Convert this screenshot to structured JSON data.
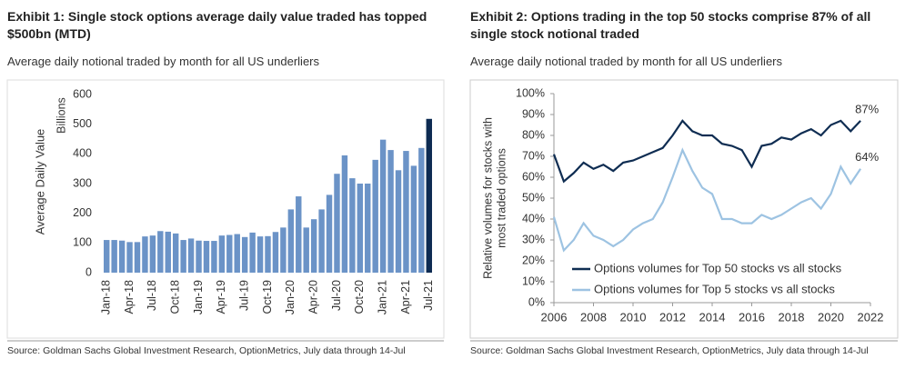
{
  "chart_data": [
    {
      "type": "bar",
      "title": "Exhibit 1: Single stock options average daily value traded has topped $500bn (MTD)",
      "subtitle": "Average daily notional traded by month for all US underliers",
      "ylabel": "Average Daily Value",
      "yunit": "Billions",
      "source": "Source: Goldman Sachs Global Investment Research, OptionMetrics, July data through 14-Jul",
      "categories": [
        "Jan-18",
        null,
        null,
        "Apr-18",
        null,
        null,
        "Jul-18",
        null,
        null,
        "Oct-18",
        null,
        null,
        "Jan-19",
        null,
        null,
        "Apr-19",
        null,
        null,
        "Jul-19",
        null,
        null,
        "Oct-19",
        null,
        null,
        "Jan-20",
        null,
        null,
        "Apr-20",
        null,
        null,
        "Jul-20",
        null,
        null,
        "Oct-20",
        null,
        null,
        "Jan-21",
        null,
        null,
        "Apr-21",
        null,
        null,
        "Jul-21"
      ],
      "values": [
        110,
        110,
        108,
        103,
        103,
        122,
        125,
        140,
        138,
        132,
        110,
        115,
        108,
        107,
        107,
        125,
        127,
        130,
        120,
        135,
        122,
        123,
        137,
        152,
        213,
        257,
        152,
        180,
        213,
        262,
        333,
        395,
        318,
        300,
        300,
        380,
        448,
        413,
        345,
        410,
        360,
        420,
        518
      ],
      "colors": [
        "#6b93c7",
        "#6b93c7",
        "#6b93c7",
        "#6b93c7",
        "#6b93c7",
        "#6b93c7",
        "#6b93c7",
        "#6b93c7",
        "#6b93c7",
        "#6b93c7",
        "#6b93c7",
        "#6b93c7",
        "#6b93c7",
        "#6b93c7",
        "#6b93c7",
        "#6b93c7",
        "#6b93c7",
        "#6b93c7",
        "#6b93c7",
        "#6b93c7",
        "#6b93c7",
        "#6b93c7",
        "#6b93c7",
        "#6b93c7",
        "#6b93c7",
        "#6b93c7",
        "#6b93c7",
        "#6b93c7",
        "#6b93c7",
        "#6b93c7",
        "#6b93c7",
        "#6b93c7",
        "#6b93c7",
        "#6b93c7",
        "#6b93c7",
        "#6b93c7",
        "#6b93c7",
        "#6b93c7",
        "#6b93c7",
        "#6b93c7",
        "#6b93c7",
        "#6b93c7",
        "#0d2b52"
      ],
      "ylim": [
        0,
        600
      ],
      "yticks": [
        0,
        100,
        200,
        300,
        400,
        500,
        600
      ]
    },
    {
      "type": "line",
      "title": "Exhibit 2: Options trading in the top 50 stocks comprise 87% of all single stock notional traded",
      "subtitle": "Average daily notional traded by month for all US underliers",
      "ylabel": [
        "Relative volumes for stocks with",
        "most traded options"
      ],
      "source": "Source: Goldman Sachs Global Investment Research, OptionMetrics, July data through 14-Jul",
      "x": [
        2006,
        2006.5,
        2007,
        2007.5,
        2008,
        2008.5,
        2009,
        2009.5,
        2010,
        2010.5,
        2011,
        2011.5,
        2012,
        2012.5,
        2013,
        2013.5,
        2014,
        2014.5,
        2015,
        2015.5,
        2016,
        2016.5,
        2017,
        2017.5,
        2018,
        2018.5,
        2019,
        2019.5,
        2020,
        2020.5,
        2021,
        2021.5
      ],
      "series": [
        {
          "name": "Options volumes for Top 50 stocks vs all stocks",
          "color": "#0f2d52",
          "values": [
            71,
            58,
            62,
            67,
            64,
            66,
            63,
            67,
            68,
            70,
            72,
            74,
            80,
            87,
            82,
            80,
            80,
            76,
            75,
            73,
            65,
            75,
            76,
            79,
            78,
            81,
            83,
            80,
            85,
            87,
            82,
            87
          ]
        },
        {
          "name": "Options volumes for Top 5 stocks vs all stocks",
          "color": "#9dc3e2",
          "values": [
            41,
            25,
            30,
            38,
            32,
            30,
            27,
            30,
            35,
            38,
            40,
            48,
            60,
            73,
            63,
            55,
            52,
            40,
            40,
            38,
            38,
            42,
            40,
            42,
            45,
            48,
            50,
            45,
            52,
            65,
            57,
            64
          ]
        }
      ],
      "annotations": [
        "87%",
        "64%"
      ],
      "legend": "lower center",
      "xlim": [
        2006,
        2022
      ],
      "xticks": [
        2006,
        2008,
        2010,
        2012,
        2014,
        2016,
        2018,
        2020,
        2022
      ],
      "ylim": [
        0,
        100
      ],
      "yticks": [
        {
          "value": 0,
          "label": "0%"
        },
        {
          "value": 10,
          "label": "10%"
        },
        {
          "value": 20,
          "label": "20%"
        },
        {
          "value": 30,
          "label": "30%"
        },
        {
          "value": 40,
          "label": "40%"
        },
        {
          "value": 50,
          "label": "50%"
        },
        {
          "value": 60,
          "label": "60%"
        },
        {
          "value": 70,
          "label": "70%"
        },
        {
          "value": 80,
          "label": "80%"
        },
        {
          "value": 90,
          "label": "90%"
        },
        {
          "value": 100,
          "label": "100%"
        }
      ]
    }
  ]
}
